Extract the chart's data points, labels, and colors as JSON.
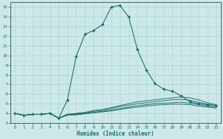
{
  "xlabel": "Humidex (Indice chaleur)",
  "bg_color": "#cce8e8",
  "line_color": "#1a6b6b",
  "grid_color": "#aad4d4",
  "xlim": [
    -0.5,
    23.5
  ],
  "ylim": [
    3.0,
    15.5
  ],
  "xticks": [
    0,
    1,
    2,
    3,
    4,
    5,
    6,
    7,
    8,
    9,
    10,
    11,
    12,
    13,
    14,
    15,
    16,
    17,
    18,
    19,
    20,
    21,
    22,
    23
  ],
  "yticks": [
    3,
    4,
    5,
    6,
    7,
    8,
    9,
    10,
    11,
    12,
    13,
    14,
    15
  ],
  "main_line": {
    "x": [
      0,
      1,
      2,
      3,
      4,
      5,
      6,
      7,
      8,
      9,
      10,
      11,
      12,
      13,
      14,
      15,
      16,
      17,
      18,
      19,
      20,
      21,
      22,
      23
    ],
    "y": [
      4.0,
      3.8,
      3.9,
      3.9,
      4.0,
      3.5,
      5.4,
      9.9,
      12.2,
      12.6,
      13.2,
      15.0,
      15.2,
      14.0,
      10.6,
      8.5,
      7.1,
      6.5,
      6.3,
      5.8,
      5.2,
      5.0,
      4.9,
      4.8
    ]
  },
  "flat_lines": [
    {
      "x": [
        0,
        1,
        2,
        3,
        4,
        5,
        6,
        7,
        8,
        9,
        10,
        11,
        12,
        13,
        14,
        15,
        16,
        17,
        18,
        19,
        20,
        21,
        22,
        23
      ],
      "y": [
        4.0,
        3.8,
        3.9,
        3.9,
        4.0,
        3.5,
        3.9,
        4.0,
        4.1,
        4.3,
        4.4,
        4.6,
        4.8,
        5.0,
        5.2,
        5.3,
        5.4,
        5.5,
        5.6,
        5.7,
        5.6,
        5.4,
        5.1,
        4.9
      ]
    },
    {
      "x": [
        0,
        1,
        2,
        3,
        4,
        5,
        6,
        7,
        8,
        9,
        10,
        11,
        12,
        13,
        14,
        15,
        16,
        17,
        18,
        19,
        20,
        21,
        22,
        23
      ],
      "y": [
        4.0,
        3.8,
        3.9,
        3.9,
        4.0,
        3.5,
        3.9,
        3.95,
        4.05,
        4.2,
        4.3,
        4.5,
        4.7,
        4.85,
        5.0,
        5.1,
        5.2,
        5.3,
        5.4,
        5.45,
        5.35,
        5.15,
        4.95,
        4.8
      ]
    },
    {
      "x": [
        0,
        1,
        2,
        3,
        4,
        5,
        6,
        7,
        8,
        9,
        10,
        11,
        12,
        13,
        14,
        15,
        16,
        17,
        18,
        19,
        20,
        21,
        22,
        23
      ],
      "y": [
        4.0,
        3.8,
        3.9,
        3.9,
        4.0,
        3.5,
        3.85,
        3.9,
        4.0,
        4.1,
        4.2,
        4.35,
        4.5,
        4.65,
        4.8,
        4.9,
        5.0,
        5.05,
        5.1,
        5.15,
        5.05,
        4.9,
        4.75,
        4.65
      ]
    },
    {
      "x": [
        0,
        1,
        2,
        3,
        4,
        5,
        6,
        7,
        8,
        9,
        10,
        11,
        12,
        13,
        14,
        15,
        16,
        17,
        18,
        19,
        20,
        21,
        22,
        23
      ],
      "y": [
        4.0,
        3.8,
        3.9,
        3.9,
        4.0,
        3.5,
        3.8,
        3.85,
        3.95,
        4.05,
        4.15,
        4.25,
        4.4,
        4.55,
        4.65,
        4.75,
        4.85,
        4.9,
        4.95,
        4.95,
        4.9,
        4.75,
        4.65,
        4.55
      ]
    }
  ]
}
